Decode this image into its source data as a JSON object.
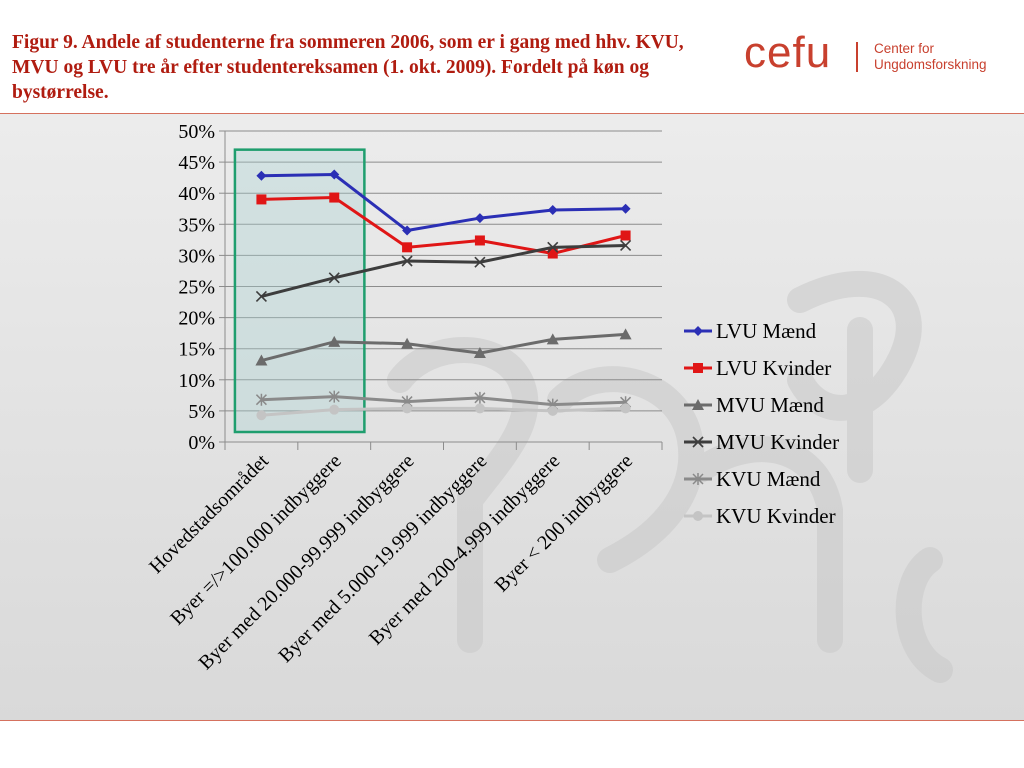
{
  "title": "Figur 9. Andele af studenterne fra sommeren 2006, som er i gang med hhv. KVU, MVU og LVU tre år efter studentereksamen (1. okt. 2009). Fordelt på køn og bystørrelse.",
  "logo": {
    "wordmark": "cefu",
    "subtitle_line1": "Center for",
    "subtitle_line2": "Ungdomsforskning",
    "color": "#c8402e"
  },
  "chart_data": {
    "type": "line",
    "title": "Figur 9. Andele af studenterne fra sommeren 2006, som er i gang med hhv. KVU, MVU og LVU tre år efter studentereksamen (1. okt. 2009). Fordelt på køn og bystørrelse.",
    "xlabel": "",
    "ylabel": "",
    "ylim": [
      0,
      50
    ],
    "yticks": [
      "0%",
      "5%",
      "10%",
      "15%",
      "20%",
      "25%",
      "30%",
      "35%",
      "40%",
      "45%",
      "50%"
    ],
    "grid": true,
    "legend_position": "right",
    "categories": [
      "Hovedstadsområdet",
      "Byer =/>100.000 indbyggere",
      "Byer med 20.000-99.999 indbyggere",
      "Byer med 5.000-19.999 indbyggere",
      "Byer med 200-4.999 indbyggere",
      "Byer < 200 indbyggere"
    ],
    "series": [
      {
        "name": "LVU Mænd",
        "values": [
          42.8,
          43.0,
          34.0,
          36.0,
          37.3,
          37.5
        ],
        "color": "#2b2fb5",
        "marker": "diamond"
      },
      {
        "name": "LVU Kvinder",
        "values": [
          39.0,
          39.3,
          31.3,
          32.4,
          30.3,
          33.2
        ],
        "color": "#e01616",
        "marker": "square"
      },
      {
        "name": "MVU Mænd",
        "values": [
          13.1,
          16.1,
          15.8,
          14.3,
          16.5,
          17.3
        ],
        "color": "#6b6b6b",
        "marker": "triangle"
      },
      {
        "name": "MVU Kvinder",
        "values": [
          23.4,
          26.4,
          29.1,
          28.9,
          31.3,
          31.6
        ],
        "color": "#3d3d3d",
        "marker": "x"
      },
      {
        "name": "KVU Mænd",
        "values": [
          6.8,
          7.3,
          6.5,
          7.1,
          6.0,
          6.4
        ],
        "color": "#8a8a8a",
        "marker": "star"
      },
      {
        "name": "KVU Kvinder",
        "values": [
          4.3,
          5.2,
          5.4,
          5.4,
          5.0,
          5.4
        ],
        "color": "#c4c4c4",
        "marker": "circle"
      }
    ],
    "highlight": {
      "categories": [
        "Hovedstadsområdet",
        "Byer =/>100.000 indbyggere"
      ],
      "color": "#1f9e6e"
    }
  }
}
